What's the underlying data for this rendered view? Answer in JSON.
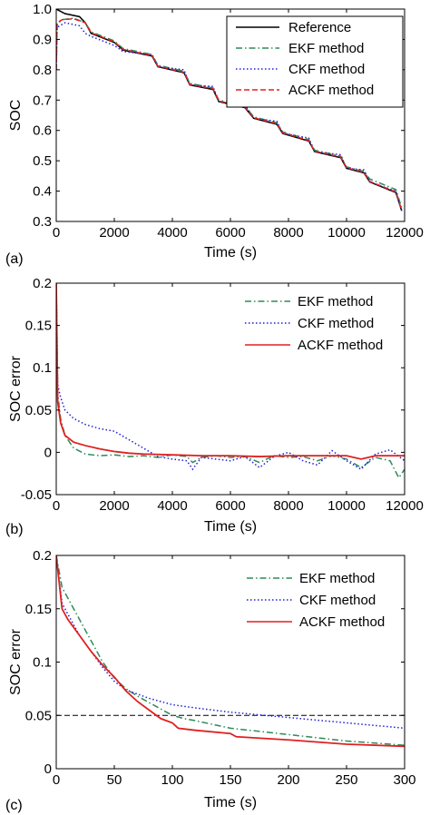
{
  "chart_data": [
    {
      "type": "line",
      "panel_label": "(a)",
      "xlabel": "Time (s)",
      "ylabel": "SOC",
      "xlim": [
        0,
        12000
      ],
      "ylim": [
        0.3,
        1.0
      ],
      "xticks": [
        0,
        2000,
        4000,
        6000,
        8000,
        10000,
        12000
      ],
      "yticks": [
        0.3,
        0.4,
        0.5,
        0.6,
        0.7,
        0.8,
        0.9,
        1.0
      ],
      "xtick_labels": [
        "0",
        "2000",
        "4000",
        "6000",
        "8000",
        "10000",
        "12000"
      ],
      "ytick_labels": [
        "0.3",
        "0.4",
        "0.5",
        "0.6",
        "0.7",
        "0.8",
        "0.9",
        "1.0"
      ],
      "legend_position": "top-right",
      "series": [
        {
          "name": "Reference",
          "color": "#000000",
          "style": "solid",
          "x": [
            0,
            300,
            800,
            1000,
            1200,
            2000,
            2300,
            3300,
            3500,
            4400,
            4600,
            5400,
            5600,
            6500,
            6800,
            7600,
            7800,
            8700,
            8900,
            9800,
            10000,
            10600,
            10800,
            11700,
            11900
          ],
          "y": [
            1.0,
            0.985,
            0.975,
            0.955,
            0.92,
            0.89,
            0.865,
            0.845,
            0.81,
            0.79,
            0.75,
            0.735,
            0.695,
            0.675,
            0.64,
            0.62,
            0.59,
            0.565,
            0.53,
            0.51,
            0.475,
            0.46,
            0.43,
            0.395,
            0.335
          ]
        },
        {
          "name": "EKF method",
          "color": "#2e8b57",
          "style": "dashdot",
          "x": [
            0,
            30,
            200,
            600,
            1000,
            1200,
            2000,
            2300,
            3300,
            3500,
            4400,
            4600,
            5400,
            5600,
            6500,
            6800,
            7600,
            7800,
            8700,
            8900,
            9800,
            10000,
            10600,
            10800,
            11700,
            11900
          ],
          "y": [
            0.8,
            0.95,
            0.965,
            0.97,
            0.955,
            0.925,
            0.895,
            0.87,
            0.85,
            0.815,
            0.795,
            0.755,
            0.74,
            0.7,
            0.68,
            0.645,
            0.625,
            0.595,
            0.57,
            0.535,
            0.515,
            0.48,
            0.465,
            0.44,
            0.405,
            0.345
          ]
        },
        {
          "name": "CKF method",
          "color": "#1f1fd8",
          "style": "dotted",
          "x": [
            0,
            30,
            300,
            800,
            1000,
            1200,
            2000,
            2300,
            3300,
            3500,
            4400,
            4600,
            5400,
            5600,
            6500,
            6800,
            7600,
            7800,
            8700,
            8900,
            9800,
            10000,
            10600,
            10800,
            11700,
            11900
          ],
          "y": [
            0.8,
            0.94,
            0.955,
            0.945,
            0.92,
            0.91,
            0.88,
            0.86,
            0.85,
            0.81,
            0.8,
            0.75,
            0.745,
            0.695,
            0.685,
            0.64,
            0.63,
            0.59,
            0.575,
            0.53,
            0.52,
            0.475,
            0.47,
            0.43,
            0.4,
            0.335
          ]
        },
        {
          "name": "ACKF method",
          "color": "#e02020",
          "style": "dashed",
          "x": [
            0,
            30,
            200,
            600,
            1000,
            1200,
            2000,
            2300,
            3300,
            3500,
            4400,
            4600,
            5400,
            5600,
            6500,
            6800,
            7600,
            7800,
            8700,
            8900,
            9800,
            10000,
            10600,
            10800,
            11700,
            11900
          ],
          "y": [
            0.8,
            0.955,
            0.965,
            0.968,
            0.955,
            0.922,
            0.892,
            0.867,
            0.847,
            0.812,
            0.792,
            0.752,
            0.737,
            0.697,
            0.677,
            0.642,
            0.622,
            0.592,
            0.567,
            0.532,
            0.512,
            0.477,
            0.462,
            0.432,
            0.397,
            0.337
          ]
        }
      ]
    },
    {
      "type": "line",
      "panel_label": "(b)",
      "xlabel": "Time (s)",
      "ylabel": "SOC error",
      "xlim": [
        0,
        12000
      ],
      "ylim": [
        -0.05,
        0.2
      ],
      "xticks": [
        0,
        2000,
        4000,
        6000,
        8000,
        10000,
        12000
      ],
      "yticks": [
        -0.05,
        0,
        0.05,
        0.1,
        0.15,
        0.2
      ],
      "xtick_labels": [
        "0",
        "2000",
        "4000",
        "6000",
        "8000",
        "10000",
        "12000"
      ],
      "ytick_labels": [
        "-0.05",
        "0",
        "0.05",
        "0.1",
        "0.15",
        "0.2"
      ],
      "legend_position": "top-right",
      "series": [
        {
          "name": "EKF method",
          "color": "#2e8b57",
          "style": "dashdot",
          "x": [
            0,
            50,
            150,
            300,
            600,
            1000,
            1500,
            2000,
            2500,
            3000,
            3500,
            4000,
            4500,
            4700,
            5000,
            5500,
            6000,
            6500,
            7000,
            7500,
            8000,
            8500,
            9000,
            9500,
            10000,
            10500,
            11000,
            11500,
            11800,
            12000
          ],
          "y": [
            0.2,
            0.07,
            0.04,
            0.02,
            0.005,
            -0.002,
            -0.004,
            -0.003,
            -0.005,
            -0.004,
            -0.006,
            -0.003,
            -0.005,
            -0.012,
            -0.006,
            -0.004,
            -0.006,
            -0.005,
            -0.012,
            -0.004,
            -0.006,
            -0.005,
            -0.01,
            -0.004,
            -0.008,
            -0.018,
            -0.006,
            -0.01,
            -0.03,
            -0.02
          ]
        },
        {
          "name": "CKF method",
          "color": "#1f1fd8",
          "style": "dotted",
          "x": [
            0,
            50,
            150,
            300,
            600,
            1000,
            1500,
            2000,
            2500,
            3000,
            3500,
            4000,
            4500,
            4700,
            5000,
            5500,
            6000,
            6500,
            7000,
            7500,
            8000,
            8500,
            9000,
            9500,
            10000,
            10500,
            11000,
            11500,
            12000
          ],
          "y": [
            0.2,
            0.08,
            0.065,
            0.05,
            0.04,
            0.033,
            0.028,
            0.025,
            0.015,
            0.005,
            -0.005,
            -0.008,
            -0.01,
            -0.02,
            -0.006,
            -0.008,
            -0.01,
            -0.005,
            -0.018,
            -0.005,
            0.0,
            -0.01,
            -0.015,
            0.002,
            -0.01,
            -0.02,
            -0.002,
            0.003,
            -0.01
          ]
        },
        {
          "name": "ACKF method",
          "color": "#e02020",
          "style": "solid",
          "x": [
            0,
            50,
            150,
            300,
            600,
            1000,
            1500,
            2000,
            2500,
            3000,
            4000,
            5000,
            6000,
            7000,
            8000,
            9000,
            10000,
            10500,
            11000,
            12000
          ],
          "y": [
            0.2,
            0.06,
            0.035,
            0.02,
            0.012,
            0.008,
            0.004,
            0.001,
            -0.001,
            -0.002,
            -0.003,
            -0.004,
            -0.004,
            -0.005,
            -0.004,
            -0.004,
            -0.004,
            -0.008,
            -0.004,
            -0.004
          ]
        }
      ]
    },
    {
      "type": "line",
      "panel_label": "(c)",
      "xlabel": "Time (s)",
      "ylabel": "SOC error",
      "xlim": [
        0,
        300
      ],
      "ylim": [
        0,
        0.2
      ],
      "xticks": [
        0,
        50,
        100,
        150,
        200,
        250,
        300
      ],
      "yticks": [
        0,
        0.05,
        0.1,
        0.15,
        0.2
      ],
      "xtick_labels": [
        "0",
        "50",
        "100",
        "150",
        "200",
        "250",
        "300"
      ],
      "ytick_labels": [
        "0",
        "0.05",
        "0.1",
        "0.15",
        "0.2"
      ],
      "legend_position": "top-right",
      "reference_line": {
        "y": 0.05,
        "color": "#000000",
        "style": "dashed"
      },
      "series": [
        {
          "name": "EKF method",
          "color": "#2e8b57",
          "style": "dashdot",
          "x": [
            0,
            5,
            10,
            20,
            30,
            40,
            50,
            60,
            70,
            80,
            90,
            100,
            110,
            120,
            150,
            200,
            250,
            300
          ],
          "y": [
            0.2,
            0.17,
            0.16,
            0.14,
            0.12,
            0.1,
            0.085,
            0.075,
            0.068,
            0.062,
            0.056,
            0.05,
            0.047,
            0.045,
            0.038,
            0.032,
            0.026,
            0.022
          ]
        },
        {
          "name": "CKF method",
          "color": "#1f1fd8",
          "style": "dotted",
          "x": [
            0,
            5,
            10,
            20,
            30,
            40,
            50,
            60,
            80,
            100,
            120,
            150,
            200,
            250,
            300
          ],
          "y": [
            0.2,
            0.155,
            0.145,
            0.125,
            0.11,
            0.095,
            0.082,
            0.074,
            0.066,
            0.06,
            0.057,
            0.053,
            0.048,
            0.043,
            0.038
          ]
        },
        {
          "name": "ACKF method",
          "color": "#e02020",
          "style": "solid",
          "x": [
            0,
            5,
            10,
            20,
            30,
            40,
            50,
            60,
            70,
            80,
            90,
            100,
            105,
            120,
            150,
            155,
            200,
            250,
            300
          ],
          "y": [
            0.2,
            0.15,
            0.14,
            0.125,
            0.11,
            0.097,
            0.086,
            0.073,
            0.063,
            0.055,
            0.047,
            0.043,
            0.038,
            0.036,
            0.033,
            0.03,
            0.027,
            0.023,
            0.021
          ]
        }
      ]
    }
  ]
}
